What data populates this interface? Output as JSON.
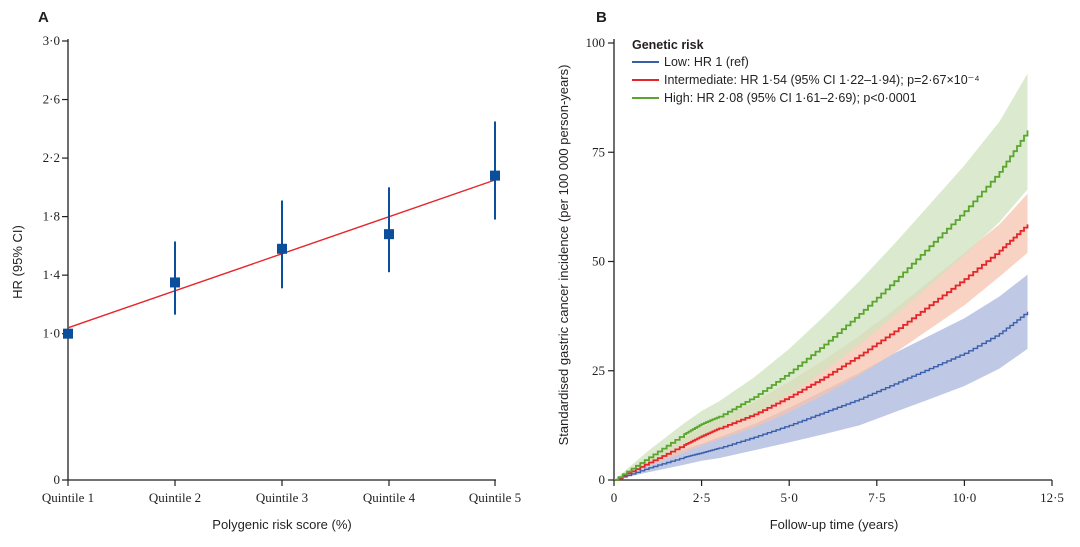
{
  "chart_data": [
    {
      "panel": "A",
      "type": "scatter",
      "title": "",
      "xlabel": "Polygenic risk score (%)",
      "ylabel": "HR (95% CI)",
      "categories": [
        "Quintile 1",
        "Quintile 2",
        "Quintile 3",
        "Quintile 4",
        "Quintile 5"
      ],
      "ylim": [
        0,
        3.0
      ],
      "yticks": [
        "0",
        "1·0",
        "1·4",
        "1·8",
        "2·2",
        "2·6",
        "3·0"
      ],
      "ytick_values": [
        0,
        1.0,
        1.4,
        1.8,
        2.2,
        2.6,
        3.0
      ],
      "points": [
        {
          "category": "Quintile 1",
          "hr": 1.0,
          "lo": 1.0,
          "hi": 1.0
        },
        {
          "category": "Quintile 2",
          "hr": 1.35,
          "lo": 1.13,
          "hi": 1.63
        },
        {
          "category": "Quintile 3",
          "hr": 1.58,
          "lo": 1.31,
          "hi": 1.91
        },
        {
          "category": "Quintile 4",
          "hr": 1.68,
          "lo": 1.42,
          "hi": 2.0
        },
        {
          "category": "Quintile 5",
          "hr": 2.08,
          "lo": 1.78,
          "hi": 2.45
        }
      ],
      "trend": {
        "from": 1.04,
        "to": 2.05
      },
      "colors": {
        "marker": "#0b4f9c",
        "trend": "#e4262b"
      }
    },
    {
      "panel": "B",
      "type": "line",
      "xlabel": "Follow-up time (years)",
      "ylabel": "Standardised gastric cancer incidence (per 100 000 person-years)",
      "xlim": [
        0,
        12.5
      ],
      "ylim": [
        0,
        100
      ],
      "xticks": [
        "0",
        "2·5",
        "5·0",
        "7·5",
        "10·0",
        "12·5"
      ],
      "xtick_values": [
        0,
        2.5,
        5.0,
        7.5,
        10.0,
        12.5
      ],
      "yticks": [
        "0",
        "25",
        "50",
        "75",
        "100"
      ],
      "ytick_values": [
        0,
        25,
        50,
        75,
        100
      ],
      "legend_title": "Genetic risk",
      "legend_position": "top-left",
      "series": [
        {
          "name": "Low: HR 1 (ref)",
          "color": "#3a5ea8",
          "band_color": "#aab7dd",
          "x": [
            0,
            1,
            2,
            2.5,
            3,
            4,
            5,
            6,
            7,
            8,
            9,
            10,
            11,
            11.8
          ],
          "y": [
            0,
            2.8,
            5.2,
            6.2,
            7.3,
            9.8,
            12.5,
            15.5,
            18.5,
            22.0,
            25.5,
            29.0,
            33.5,
            38.5
          ],
          "lower": [
            0,
            1.8,
            3.5,
            4.4,
            5.0,
            6.8,
            8.6,
            10.5,
            12.5,
            15.5,
            18.5,
            21.5,
            25.5,
            30.0
          ],
          "upper": [
            0,
            4.0,
            7.0,
            8.3,
            9.8,
            12.8,
            16.5,
            20.5,
            24.5,
            29.0,
            33.0,
            37.0,
            42.0,
            47.0
          ]
        },
        {
          "name": "Intermediate: HR 1·54 (95% CI 1·22–1·94); p=2·67×10⁻⁴",
          "color": "#e4262b",
          "band_color": "#f6c3ad",
          "x": [
            0,
            1,
            2,
            2.5,
            3,
            4,
            5,
            6,
            7,
            8,
            9,
            10,
            11,
            11.8
          ],
          "y": [
            0,
            4.0,
            8.0,
            10.0,
            11.8,
            15.0,
            19.0,
            23.5,
            28.5,
            34.0,
            40.0,
            46.0,
            52.5,
            58.5
          ],
          "lower": [
            0,
            3.2,
            6.3,
            7.9,
            9.3,
            12.0,
            15.5,
            19.5,
            24.0,
            29.0,
            34.5,
            40.0,
            46.5,
            52.0
          ],
          "upper": [
            0,
            5.0,
            9.8,
            12.0,
            14.0,
            17.8,
            22.5,
            27.5,
            33.0,
            39.0,
            45.5,
            52.0,
            58.5,
            65.5
          ]
        },
        {
          "name": "High: HR 2·08 (95% CI 1·61–2·69); p<0·0001",
          "color": "#5ba52e",
          "band_color": "#cfe3bd",
          "x": [
            0,
            1,
            2,
            2.5,
            3,
            4,
            5,
            6,
            7,
            8,
            9,
            10,
            11,
            11.8
          ],
          "y": [
            0,
            5.2,
            10.5,
            12.8,
            14.5,
            19.0,
            24.5,
            31.0,
            38.0,
            45.5,
            53.5,
            61.5,
            70.5,
            80.0
          ],
          "lower": [
            0,
            3.8,
            8.0,
            10.0,
            11.5,
            15.0,
            19.5,
            25.0,
            31.0,
            37.5,
            44.5,
            51.5,
            59.0,
            66.5
          ],
          "upper": [
            0,
            6.8,
            13.0,
            15.8,
            18.0,
            23.5,
            30.0,
            37.5,
            45.5,
            54.0,
            63.0,
            72.0,
            82.0,
            93.0
          ]
        }
      ]
    }
  ],
  "panels": {
    "a_label": "A",
    "b_label": "B"
  }
}
